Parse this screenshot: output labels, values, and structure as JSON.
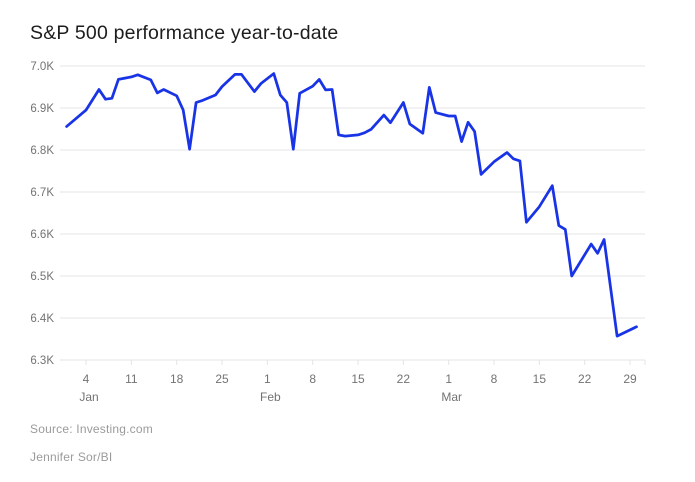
{
  "title": "S&P 500 performance year-to-date",
  "footer": {
    "source": "Source: Investing.com",
    "credit": "Jennifer Sor/BI"
  },
  "colors": {
    "line": "#1934e6",
    "grid": "#e4e4e4",
    "axis_text": "#737373",
    "title_text": "#1d1d1d",
    "footer_text": "#9b9b9b",
    "background": "#ffffff"
  },
  "chart_data": {
    "type": "line",
    "title": "S&P 500 performance year-to-date",
    "series_name": "S&P 500",
    "xlabel": "",
    "ylabel": "",
    "ylim": [
      6300,
      7000
    ],
    "grid": "horizontal",
    "legend": "none",
    "line_color": "#1934e6",
    "y_ticks": [
      {
        "value": 7000,
        "label": "7.0K"
      },
      {
        "value": 6900,
        "label": "6.9K"
      },
      {
        "value": 6800,
        "label": "6.8K"
      },
      {
        "value": 6700,
        "label": "6.7K"
      },
      {
        "value": 6600,
        "label": "6.6K"
      },
      {
        "value": 6500,
        "label": "6.5K"
      },
      {
        "value": 6400,
        "label": "6.4K"
      },
      {
        "value": 6300,
        "label": "6.3K"
      }
    ],
    "x_ticks": [
      {
        "date": "Jan 4",
        "label": "4",
        "month_label": "Jan"
      },
      {
        "date": "Jan 11",
        "label": "11",
        "month_label": ""
      },
      {
        "date": "Jan 18",
        "label": "18",
        "month_label": ""
      },
      {
        "date": "Jan 25",
        "label": "25",
        "month_label": ""
      },
      {
        "date": "Feb 1",
        "label": "1",
        "month_label": "Feb"
      },
      {
        "date": "Feb 8",
        "label": "8",
        "month_label": ""
      },
      {
        "date": "Feb 15",
        "label": "15",
        "month_label": ""
      },
      {
        "date": "Feb 22",
        "label": "22",
        "month_label": ""
      },
      {
        "date": "Mar 1",
        "label": "1",
        "month_label": "Mar"
      },
      {
        "date": "Mar 8",
        "label": "8",
        "month_label": ""
      },
      {
        "date": "Mar 15",
        "label": "15",
        "month_label": ""
      },
      {
        "date": "Mar 22",
        "label": "22",
        "month_label": ""
      },
      {
        "date": "Mar 29",
        "label": "29",
        "month_label": ""
      }
    ],
    "points": [
      [
        "Jan 1",
        6856
      ],
      [
        "Jan 4",
        6895
      ],
      [
        "Jan 6",
        6944
      ],
      [
        "Jan 7",
        6921
      ],
      [
        "Jan 8",
        6923
      ],
      [
        "Jan 9",
        6968
      ],
      [
        "Jan 11",
        6974
      ],
      [
        "Jan 12",
        6979
      ],
      [
        "Jan 14",
        6967
      ],
      [
        "Jan 15",
        6936
      ],
      [
        "Jan 16",
        6944
      ],
      [
        "Jan 18",
        6929
      ],
      [
        "Jan 19",
        6895
      ],
      [
        "Jan 20",
        6802
      ],
      [
        "Jan 21",
        6913
      ],
      [
        "Jan 22",
        6918
      ],
      [
        "Jan 24",
        6931
      ],
      [
        "Jan 25",
        6951
      ],
      [
        "Jan 27",
        6980
      ],
      [
        "Jan 28",
        6980
      ],
      [
        "Jan 30",
        6939
      ],
      [
        "Jan 31",
        6958
      ],
      [
        "Feb 2",
        6982
      ],
      [
        "Feb 3",
        6931
      ],
      [
        "Feb 4",
        6913
      ],
      [
        "Feb 5",
        6802
      ],
      [
        "Feb 6",
        6935
      ],
      [
        "Feb 8",
        6952
      ],
      [
        "Feb 9",
        6968
      ],
      [
        "Feb 10",
        6943
      ],
      [
        "Feb 11",
        6944
      ],
      [
        "Feb 12",
        6836
      ],
      [
        "Feb 13",
        6833
      ],
      [
        "Feb 15",
        6836
      ],
      [
        "Feb 16",
        6841
      ],
      [
        "Feb 17",
        6849
      ],
      [
        "Feb 19",
        6883
      ],
      [
        "Feb 20",
        6865
      ],
      [
        "Feb 22",
        6913
      ],
      [
        "Feb 23",
        6862
      ],
      [
        "Feb 25",
        6840
      ],
      [
        "Feb 26",
        6949
      ],
      [
        "Feb 27",
        6889
      ],
      [
        "Mar 1",
        6881
      ],
      [
        "Mar 2",
        6881
      ],
      [
        "Mar 3",
        6820
      ],
      [
        "Mar 4",
        6866
      ],
      [
        "Mar 5",
        6844
      ],
      [
        "Mar 6",
        6742
      ],
      [
        "Mar 8",
        6772
      ],
      [
        "Mar 10",
        6794
      ],
      [
        "Mar 11",
        6779
      ],
      [
        "Mar 12",
        6774
      ],
      [
        "Mar 13",
        6628
      ],
      [
        "Mar 15",
        6665
      ],
      [
        "Mar 17",
        6715
      ],
      [
        "Mar 18",
        6620
      ],
      [
        "Mar 19",
        6611
      ],
      [
        "Mar 20",
        6500
      ],
      [
        "Mar 23",
        6576
      ],
      [
        "Mar 24",
        6554
      ],
      [
        "Mar 25",
        6587
      ],
      [
        "Mar 27",
        6357
      ],
      [
        "Mar 30",
        6379
      ]
    ]
  }
}
